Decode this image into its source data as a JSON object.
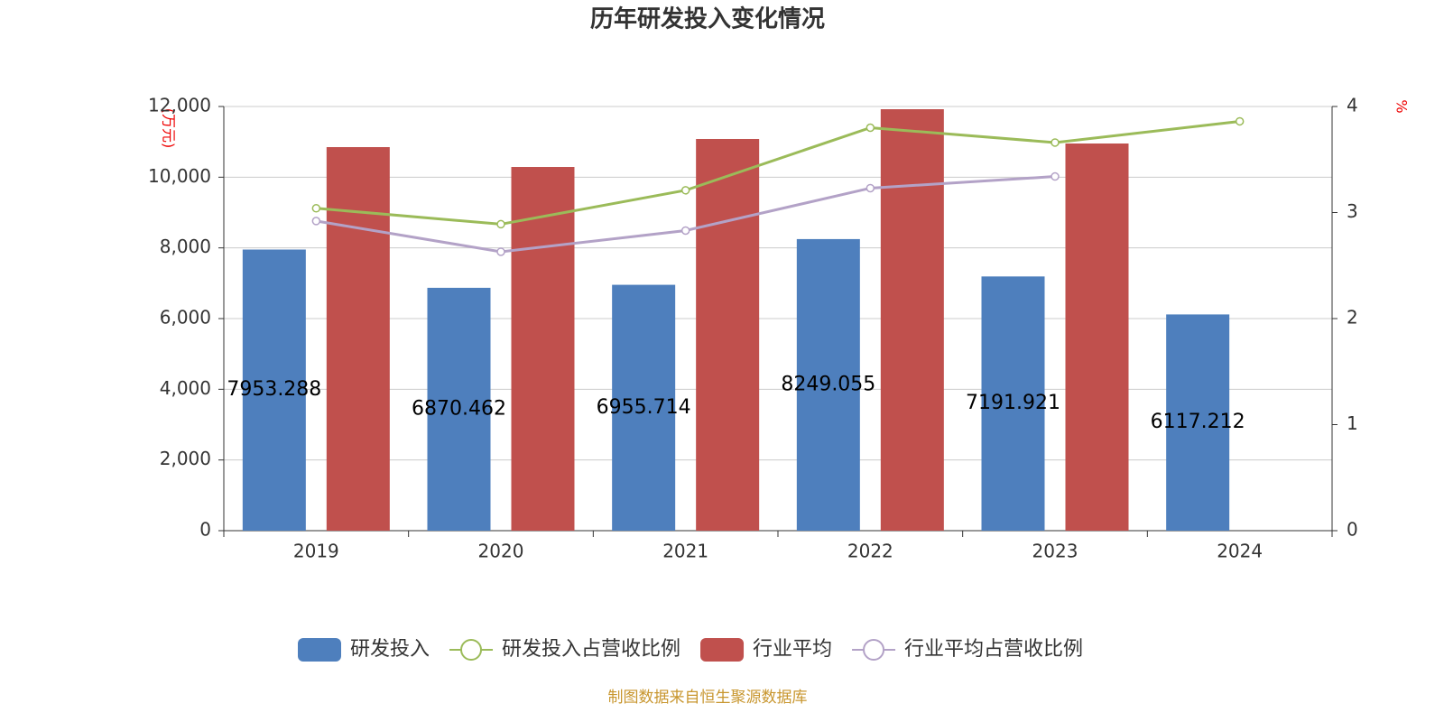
{
  "chart_data": {
    "type": "bar",
    "title": "历年研发投入变化情况",
    "y_label": "(万元)",
    "y2_label": "%",
    "categories": [
      "2019",
      "2020",
      "2021",
      "2022",
      "2023",
      "2024"
    ],
    "series": [
      {
        "name": "研发投入",
        "type": "bar",
        "color": "#4e7fbd",
        "values": [
          7953.288,
          6870.462,
          6955.714,
          8249.055,
          7191.921,
          6117.212
        ]
      },
      {
        "name": "研发投入占营收比例",
        "type": "line",
        "axis": "y2",
        "color": "#9bbb59",
        "values": [
          3.04,
          2.89,
          3.21,
          3.8,
          3.66,
          3.86
        ]
      },
      {
        "name": "行业平均",
        "type": "bar",
        "color": "#c0504d",
        "values": [
          10851,
          10289,
          11081,
          11923,
          10953,
          null
        ]
      },
      {
        "name": "行业平均占营收比例",
        "type": "line",
        "axis": "y2",
        "color": "#b3a2c7",
        "values": [
          2.92,
          2.63,
          2.83,
          3.23,
          3.34,
          null
        ]
      }
    ],
    "ylim": [
      0,
      12000
    ],
    "yticks": [
      0,
      {
        "value": 2000,
        "label": "2,000"
      },
      {
        "value": 4000,
        "label": "4,000"
      },
      {
        "value": 6000,
        "label": "6,000"
      },
      {
        "value": 8000,
        "label": "8,000"
      },
      {
        "value": 10000,
        "label": "10,000"
      },
      {
        "value": 12000,
        "label": "12,000"
      }
    ],
    "y2lim": [
      0,
      4
    ],
    "y2ticks": [
      0,
      1,
      2,
      3,
      4
    ],
    "grid": true,
    "legend": "bottom",
    "source": "制图数据来自恒生聚源数据库"
  }
}
